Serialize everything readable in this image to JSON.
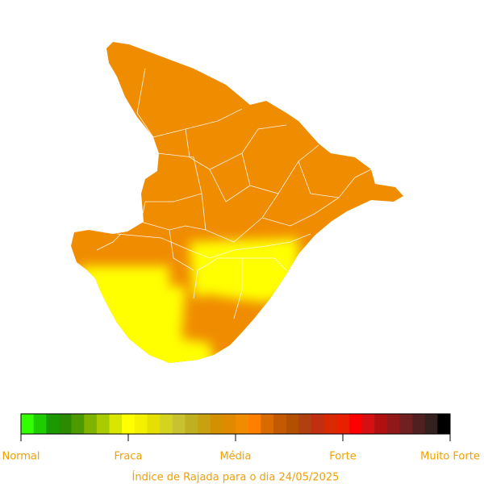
{
  "colorbar": {
    "colors": [
      "#33ff00",
      "#1fcc00",
      "#1a9900",
      "#2b8a00",
      "#4d9900",
      "#80b300",
      "#a8cc00",
      "#d9e600",
      "#ffff00",
      "#f5f000",
      "#e6e000",
      "#d4d420",
      "#c9c230",
      "#bfb020",
      "#c9a010",
      "#d49000",
      "#e08a00",
      "#f08c00",
      "#ff8000",
      "#d96a00",
      "#c45a00",
      "#b35000",
      "#b04010",
      "#c03010",
      "#d82a00",
      "#e82000",
      "#ff0000",
      "#d41010",
      "#b01010",
      "#901818",
      "#702020",
      "#502020",
      "#352020",
      "#000000"
    ],
    "labels": [
      "Normal",
      "Fraca",
      "Média",
      "Forte",
      "Muito Forte"
    ]
  },
  "caption": "Índice de Rajada para o dia 24/05/2025"
}
